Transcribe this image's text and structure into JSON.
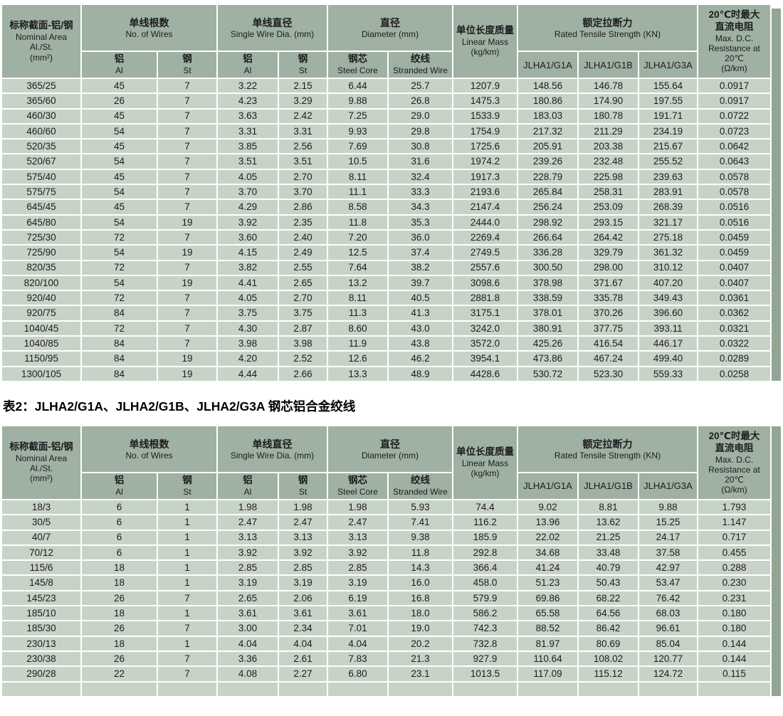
{
  "colors": {
    "header_bg": "#9eb1a3",
    "cell_bg": "#c8d3c8",
    "band": "#93a595",
    "text": "#1c1c1c",
    "page_bg": "#ffffff"
  },
  "title2": "表2：JLHA2/G1A、JLHA2/G1B、JLHA2/G3A 钢芯铝合金绞线",
  "header": {
    "nominal_area": [
      "标称截面-铝/钢",
      "Nominal Area",
      "Al./St.",
      "(mm²)"
    ],
    "wires": [
      "单线根数",
      "No. of Wires"
    ],
    "single_dia": [
      "单线直径",
      "Single Wire Dia. (mm)"
    ],
    "diameter": [
      "直径",
      "Diameter (mm)"
    ],
    "linear_mass": [
      "单位长度质量",
      "Linear Mass",
      "(kg/km)"
    ],
    "tensile": [
      "额定拉断力",
      "Rated Tensile Strength (KN)"
    ],
    "resistance": [
      "20℃时最大",
      "直流电阻",
      "Max. D.C.",
      "Resistance at 20℃",
      "(Ω/km)"
    ],
    "al": [
      "铝",
      "Al"
    ],
    "st": [
      "钢",
      "St"
    ],
    "steel_core": [
      "钢芯",
      "Steel Core"
    ],
    "stranded": [
      "绞线",
      "Stranded Wire"
    ],
    "jlha_g1a": "JLHA1/G1A",
    "jlha_g1b": "JLHA1/G1B",
    "jlha_g3a": "JLHA1/G3A"
  },
  "table1": {
    "rows": [
      [
        "365/25",
        "45",
        "7",
        "3.22",
        "2.15",
        "6.44",
        "25.7",
        "1207.9",
        "148.56",
        "146.78",
        "155.64",
        "0.0917"
      ],
      [
        "365/60",
        "26",
        "7",
        "4.23",
        "3.29",
        "9.88",
        "26.8",
        "1475.3",
        "180.86",
        "174.90",
        "197.55",
        "0.0917"
      ],
      [
        "460/30",
        "45",
        "7",
        "3.63",
        "2.42",
        "7.25",
        "29.0",
        "1533.9",
        "183.03",
        "180.78",
        "191.71",
        "0.0722"
      ],
      [
        "460/60",
        "54",
        "7",
        "3.31",
        "3.31",
        "9.93",
        "29.8",
        "1754.9",
        "217.32",
        "211.29",
        "234.19",
        "0.0723"
      ],
      [
        "520/35",
        "45",
        "7",
        "3.85",
        "2.56",
        "7.69",
        "30.8",
        "1725.6",
        "205.91",
        "203.38",
        "215.67",
        "0.0642"
      ],
      [
        "520/67",
        "54",
        "7",
        "3.51",
        "3.51",
        "10.5",
        "31.6",
        "1974.2",
        "239.26",
        "232.48",
        "255.52",
        "0.0643"
      ],
      [
        "575/40",
        "45",
        "7",
        "4.05",
        "2.70",
        "8.11",
        "32.4",
        "1917.3",
        "228.79",
        "225.98",
        "239.63",
        "0.0578"
      ],
      [
        "575/75",
        "54",
        "7",
        "3.70",
        "3.70",
        "11.1",
        "33.3",
        "2193.6",
        "265.84",
        "258.31",
        "283.91",
        "0.0578"
      ],
      [
        "645/45",
        "45",
        "7",
        "4.29",
        "2.86",
        "8.58",
        "34.3",
        "2147.4",
        "256.24",
        "253.09",
        "268.39",
        "0.0516"
      ],
      [
        "645/80",
        "54",
        "19",
        "3.92",
        "2.35",
        "11.8",
        "35.3",
        "2444.0",
        "298.92",
        "293.15",
        "321.17",
        "0.0516"
      ],
      [
        "725/30",
        "72",
        "7",
        "3.60",
        "2.40",
        "7.20",
        "36.0",
        "2269.4",
        "266.64",
        "264.42",
        "275.18",
        "0.0459"
      ],
      [
        "725/90",
        "54",
        "19",
        "4.15",
        "2.49",
        "12.5",
        "37.4",
        "2749.5",
        "336.28",
        "329.79",
        "361.32",
        "0.0459"
      ],
      [
        "820/35",
        "72",
        "7",
        "3.82",
        "2.55",
        "7.64",
        "38.2",
        "2557.6",
        "300.50",
        "298.00",
        "310.12",
        "0.0407"
      ],
      [
        "820/100",
        "54",
        "19",
        "4.41",
        "2.65",
        "13.2",
        "39.7",
        "3098.6",
        "378.98",
        "371.67",
        "407.20",
        "0.0407"
      ],
      [
        "920/40",
        "72",
        "7",
        "4.05",
        "2.70",
        "8.11",
        "40.5",
        "2881.8",
        "338.59",
        "335.78",
        "349.43",
        "0.0361"
      ],
      [
        "920/75",
        "84",
        "7",
        "3.75",
        "3.75",
        "11.3",
        "41.3",
        "3175.1",
        "378.01",
        "370.26",
        "396.60",
        "0.0362"
      ],
      [
        "1040/45",
        "72",
        "7",
        "4.30",
        "2.87",
        "8.60",
        "43.0",
        "3242.0",
        "380.91",
        "377.75",
        "393.11",
        "0.0321"
      ],
      [
        "1040/85",
        "84",
        "7",
        "3.98",
        "3.98",
        "11.9",
        "43.8",
        "3572.0",
        "425.26",
        "416.54",
        "446.17",
        "0.0322"
      ],
      [
        "1150/95",
        "84",
        "19",
        "4.20",
        "2.52",
        "12.6",
        "46.2",
        "3954.1",
        "473.86",
        "467.24",
        "499.40",
        "0.0289"
      ],
      [
        "1300/105",
        "84",
        "19",
        "4.44",
        "2.66",
        "13.3",
        "48.9",
        "4428.6",
        "530.72",
        "523.30",
        "559.33",
        "0.0258"
      ]
    ]
  },
  "table2": {
    "rows": [
      [
        "18/3",
        "6",
        "1",
        "1.98",
        "1.98",
        "1.98",
        "5.93",
        "74.4",
        "9.02",
        "8.81",
        "9.88",
        "1.793"
      ],
      [
        "30/5",
        "6",
        "1",
        "2.47",
        "2.47",
        "2.47",
        "7.41",
        "116.2",
        "13.96",
        "13.62",
        "15.25",
        "1.147"
      ],
      [
        "40/7",
        "6",
        "1",
        "3.13",
        "3.13",
        "3.13",
        "9.38",
        "185.9",
        "22.02",
        "21.25",
        "24.17",
        "0.717"
      ],
      [
        "70/12",
        "6",
        "1",
        "3.92",
        "3.92",
        "3.92",
        "11.8",
        "292.8",
        "34.68",
        "33.48",
        "37.58",
        "0.455"
      ],
      [
        "115/6",
        "18",
        "1",
        "2.85",
        "2.85",
        "2.85",
        "14.3",
        "366.4",
        "41.24",
        "40.79",
        "42.97",
        "0.288"
      ],
      [
        "145/8",
        "18",
        "1",
        "3.19",
        "3.19",
        "3.19",
        "16.0",
        "458.0",
        "51.23",
        "50.43",
        "53.47",
        "0.230"
      ],
      [
        "145/23",
        "26",
        "7",
        "2.65",
        "2.06",
        "6.19",
        "16.8",
        "579.9",
        "69.86",
        "68.22",
        "76.42",
        "0.231"
      ],
      [
        "185/10",
        "18",
        "1",
        "3.61",
        "3.61",
        "3.61",
        "18.0",
        "586.2",
        "65.58",
        "64.56",
        "68.03",
        "0.180"
      ],
      [
        "185/30",
        "26",
        "7",
        "3.00",
        "2.34",
        "7.01",
        "19.0",
        "742.3",
        "88.52",
        "86.42",
        "96.61",
        "0.180"
      ],
      [
        "230/13",
        "18",
        "1",
        "4.04",
        "4.04",
        "4.04",
        "20.2",
        "732.8",
        "81.97",
        "80.69",
        "85.04",
        "0.144"
      ],
      [
        "230/38",
        "26",
        "7",
        "3.36",
        "2.61",
        "7.83",
        "21.3",
        "927.9",
        "110.64",
        "108.02",
        "120.77",
        "0.144"
      ],
      [
        "290/28",
        "22",
        "7",
        "4.08",
        "2.27",
        "6.80",
        "23.1",
        "1013.5",
        "117.09",
        "115.12",
        "124.72",
        "0.115"
      ],
      [
        "",
        "",
        "",
        "",
        "",
        "",
        "",
        "",
        "",
        "",
        "",
        ""
      ]
    ]
  }
}
